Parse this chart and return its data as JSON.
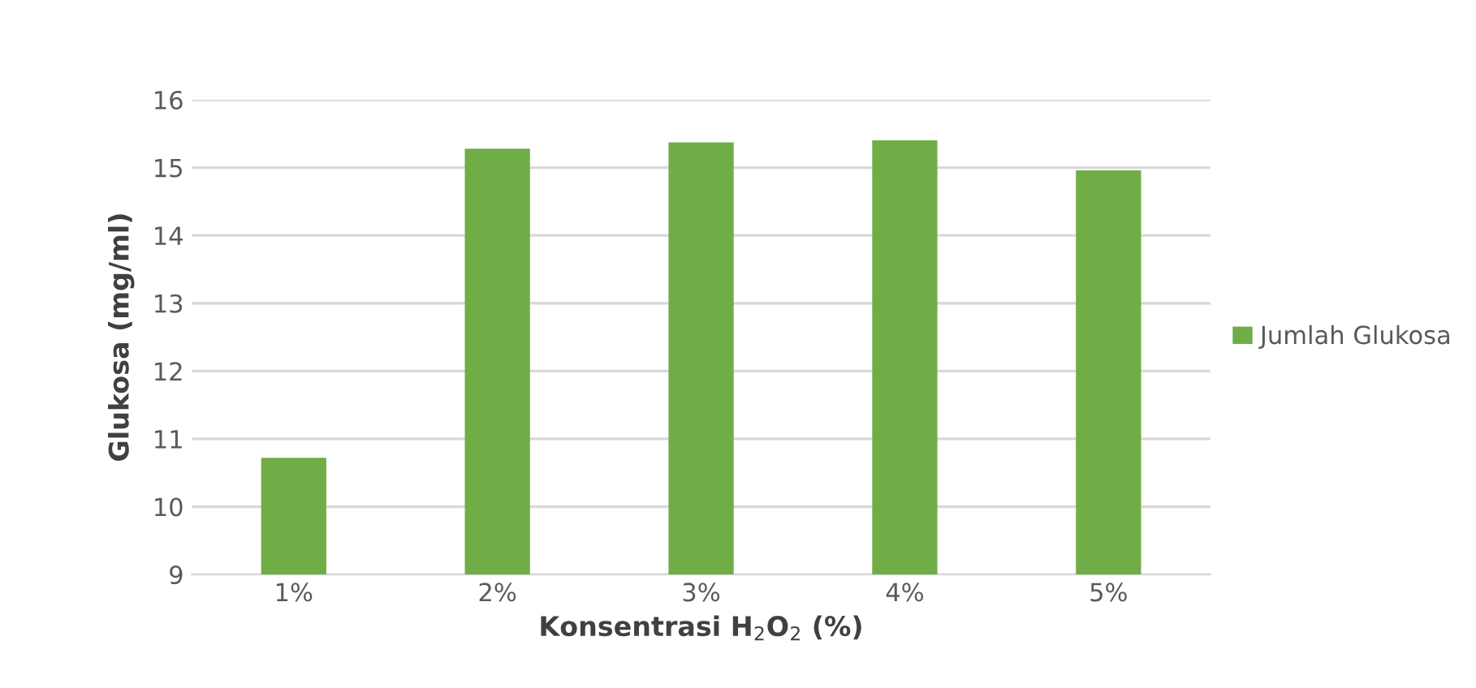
{
  "chart_data": {
    "type": "bar",
    "xlabel": "Konsentrasi H$_{2}$O$_{2}$ (%)",
    "ylabel": "Glukosa (mg/ml)",
    "categories": [
      "1%",
      "2%",
      "3%",
      "4%",
      "5%"
    ],
    "series": [
      {
        "name": "Jumlah Glukosa",
        "color": "#70ad47",
        "values": [
          10.72,
          15.28,
          15.37,
          15.4,
          14.96
        ]
      }
    ],
    "ylim": [
      9,
      16
    ],
    "yticks": [
      9,
      10,
      11,
      12,
      13,
      14,
      15,
      16
    ],
    "grid": "y",
    "legend": "right"
  }
}
